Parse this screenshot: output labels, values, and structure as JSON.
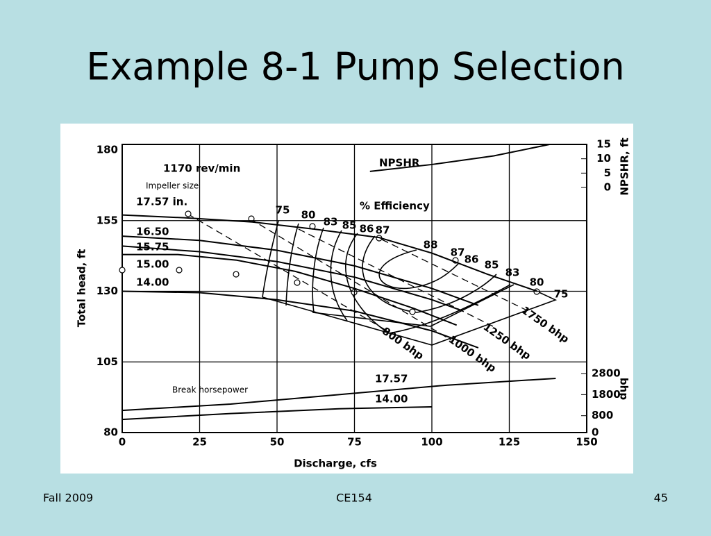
{
  "slide": {
    "title": "Example 8-1 Pump Selection",
    "footer_left": "Fall 2009",
    "footer_center": "CE154",
    "footer_right": "45"
  },
  "chart_data": {
    "type": "line",
    "x_label": "Discharge, cfs",
    "y_label": "Total head, ft",
    "y2_label": "bhp",
    "y3_label": "NPSHR, ft",
    "xlim": [
      0,
      150
    ],
    "xticks": [
      0,
      25,
      50,
      75,
      100,
      125,
      150
    ],
    "ylim": [
      80,
      180
    ],
    "yticks": [
      80,
      105,
      130,
      155,
      180
    ],
    "y2lim": [
      0,
      2800
    ],
    "y2ticks": [
      0,
      800,
      1800,
      2800
    ],
    "y3lim": [
      0,
      15
    ],
    "y3ticks": [
      0,
      5,
      10,
      15
    ],
    "grid": true,
    "annotations": [
      "1170 rev/min",
      "Impeller size",
      "% Efficiency",
      "Break horsepower"
    ],
    "efficiency_labels": [
      "75",
      "80",
      "83",
      "85",
      "86",
      "87",
      "88",
      "87",
      "86",
      "85",
      "83",
      "80",
      "75"
    ],
    "bhp_labels": [
      "800 bhp",
      "1000 bhp",
      "1250 bhp",
      "1750 bhp"
    ],
    "series": [
      {
        "name": "17.57 in.",
        "color": "#000000",
        "axis": "y",
        "x": [
          0,
          20,
          42,
          62,
          83,
          100,
          118,
          134
        ],
        "values": [
          157,
          156,
          154.5,
          152,
          149,
          143.5,
          136,
          130
        ]
      },
      {
        "name": "16.50",
        "color": "#000000",
        "axis": "y",
        "x": [
          0,
          25,
          50,
          75,
          100,
          115
        ],
        "values": [
          149.5,
          148,
          144.5,
          139,
          131,
          125
        ]
      },
      {
        "name": "15.75",
        "color": "#000000",
        "axis": "y",
        "x": [
          0,
          25,
          50,
          75,
          100,
          110
        ],
        "values": [
          146,
          144,
          140.5,
          135,
          127,
          123
        ]
      },
      {
        "name": "15.00",
        "color": "#000000",
        "axis": "y",
        "x": [
          0,
          18,
          37,
          56,
          75,
          94,
          108
        ],
        "values": [
          143,
          143,
          141,
          137,
          131,
          124,
          118
        ]
      },
      {
        "name": "14.00",
        "color": "#000000",
        "axis": "y",
        "x": [
          0,
          25,
          50,
          75,
          100,
          115
        ],
        "values": [
          130,
          129.5,
          127,
          123,
          116,
          110
        ]
      },
      {
        "name": "17.57",
        "color": "#000000",
        "axis": "y2",
        "x": [
          0,
          35,
          70,
          105,
          140
        ],
        "values": [
          1050,
          1350,
          1800,
          2250,
          2570
        ]
      },
      {
        "name": "14.00",
        "color": "#000000",
        "axis": "y2",
        "x": [
          0,
          35,
          70,
          100
        ],
        "values": [
          620,
          900,
          1130,
          1220
        ]
      },
      {
        "name": "NPSHR",
        "color": "#000000",
        "axis": "y3",
        "x": [
          80,
          100,
          120,
          138
        ],
        "values": [
          5.6,
          8,
          11,
          15
        ]
      }
    ]
  }
}
